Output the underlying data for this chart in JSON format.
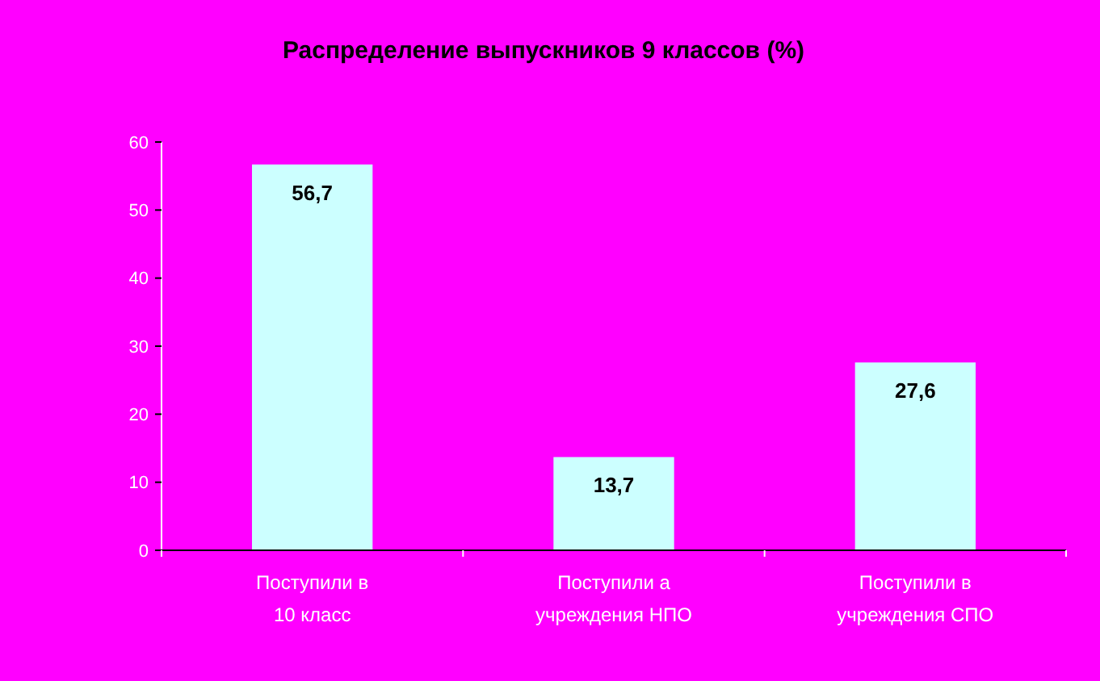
{
  "chart_data": {
    "type": "bar",
    "title": "Распределение выпускников 9 классов (%)",
    "categories": [
      "Поступили в 10 класс",
      "Поступили а учреждения НПО",
      "Поступили в учреждения СПО"
    ],
    "values": [
      56.7,
      13.7,
      27.6
    ],
    "color": "#ccffff",
    "value_labels": [
      "56,7",
      "13,7",
      "27,6"
    ],
    "ylim": [
      0,
      60
    ],
    "yticks": [
      0,
      10,
      20,
      30,
      40,
      50,
      60
    ],
    "grid": false
  }
}
